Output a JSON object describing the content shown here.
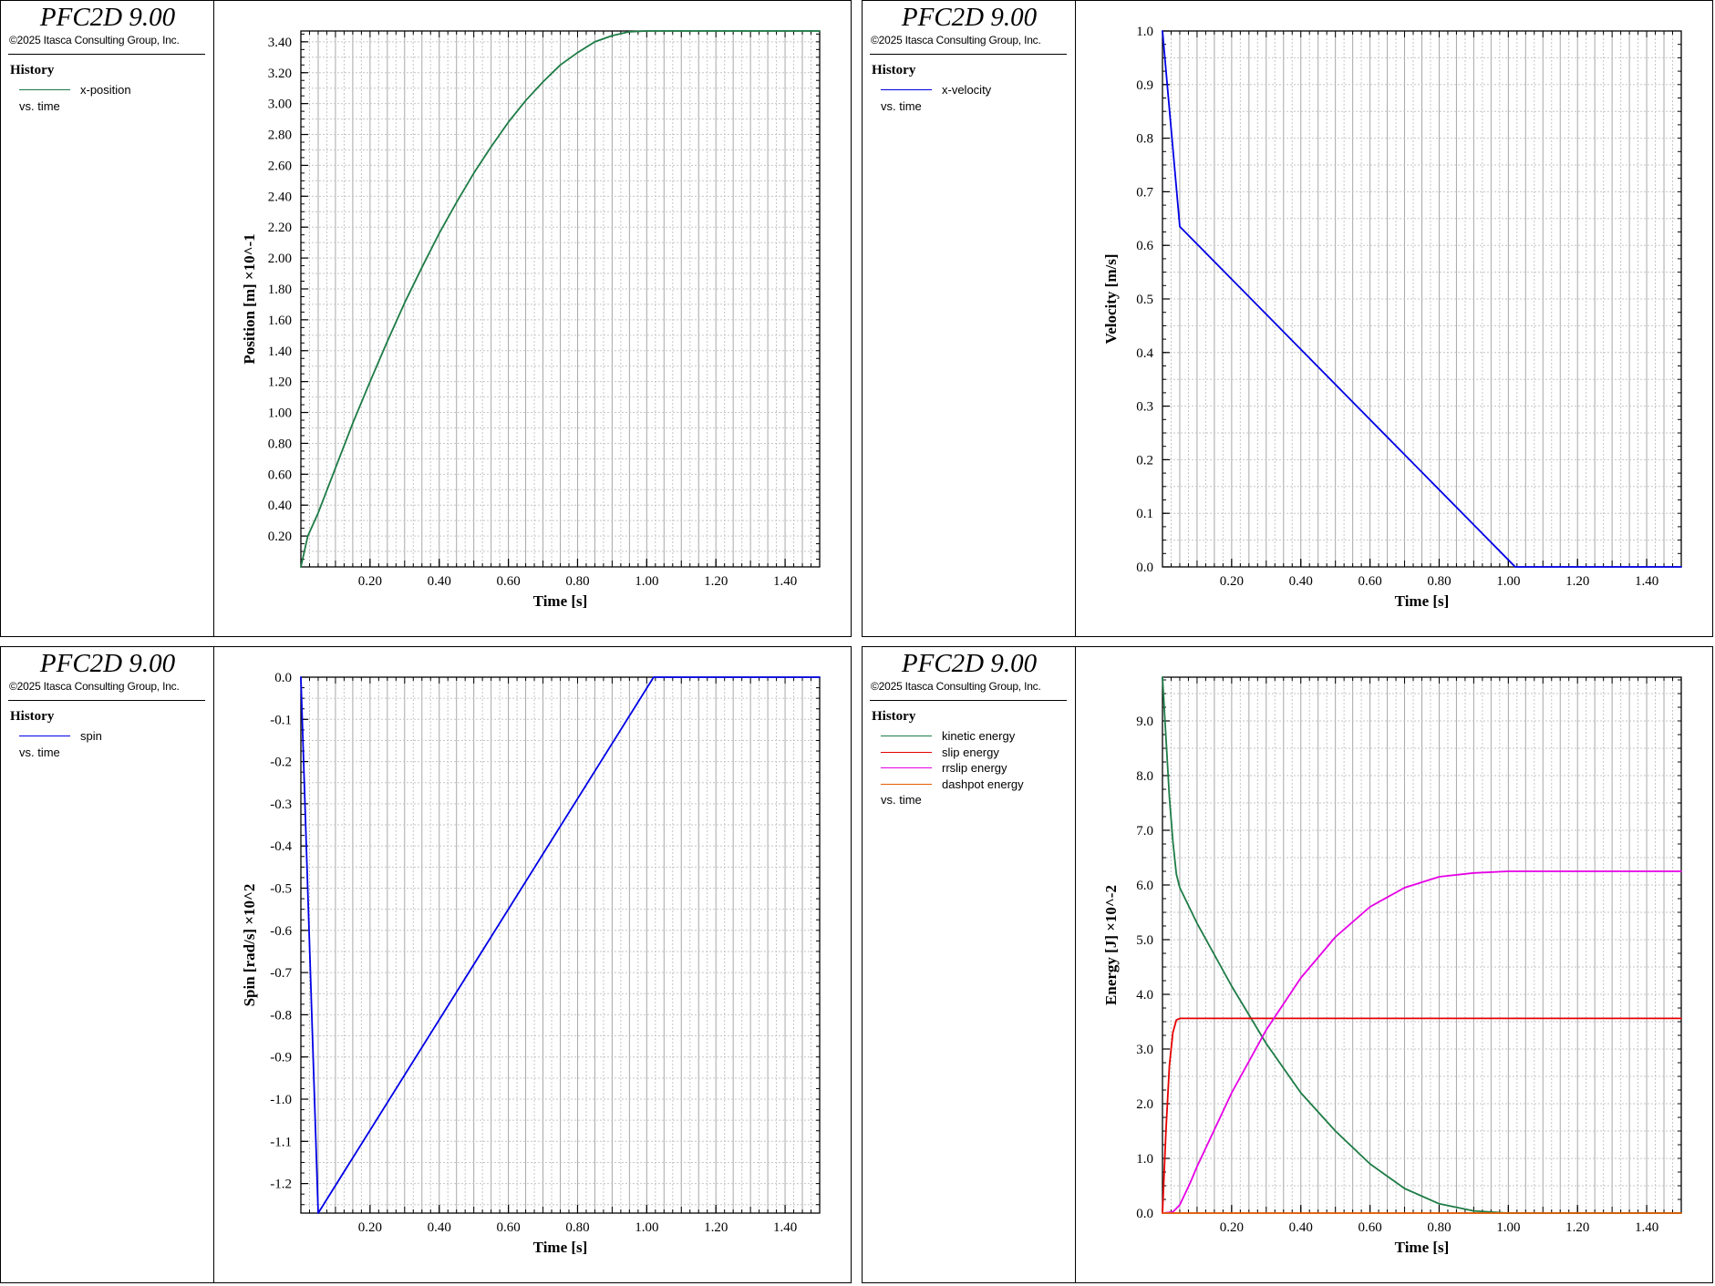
{
  "panels": [
    {
      "app_title": "PFC2D 9.00",
      "copyright": "©2025 Itasca Consulting Group, Inc.",
      "legend_heading": "History",
      "vs_label": "vs. time",
      "chart_data": {
        "type": "line",
        "xlabel": "Time [s]",
        "ylabel": "Position [m] ×10^-1",
        "xlim": [
          0,
          1.5
        ],
        "ylim": [
          0,
          3.47
        ],
        "xticks": [
          "0.20",
          "0.40",
          "0.60",
          "0.80",
          "1.00",
          "1.20",
          "1.40"
        ],
        "yticks": [
          "0.20",
          "0.40",
          "0.60",
          "0.80",
          "1.00",
          "1.20",
          "1.40",
          "1.60",
          "1.80",
          "2.00",
          "2.20",
          "2.40",
          "2.60",
          "2.80",
          "3.00",
          "3.20",
          "3.40"
        ],
        "grid": true,
        "series": [
          {
            "name": "x-position",
            "color": "#1e7c46",
            "x": [
              0,
              0.02,
              0.05,
              0.1,
              0.15,
              0.2,
              0.25,
              0.3,
              0.35,
              0.4,
              0.45,
              0.5,
              0.55,
              0.6,
              0.65,
              0.7,
              0.75,
              0.8,
              0.85,
              0.9,
              0.95,
              1.0,
              1.02,
              1.5
            ],
            "y": [
              0,
              0.2,
              0.35,
              0.64,
              0.93,
              1.2,
              1.46,
              1.71,
              1.94,
              2.16,
              2.36,
              2.55,
              2.72,
              2.88,
              3.02,
              3.14,
              3.25,
              3.33,
              3.4,
              3.44,
              3.465,
              3.47,
              3.47,
              3.47
            ]
          }
        ]
      }
    },
    {
      "app_title": "PFC2D 9.00",
      "copyright": "©2025 Itasca Consulting Group, Inc.",
      "legend_heading": "History",
      "vs_label": "vs. time",
      "chart_data": {
        "type": "line",
        "xlabel": "Time [s]",
        "ylabel": "Velocity [m/s]",
        "xlim": [
          0,
          1.5
        ],
        "ylim": [
          0,
          1.0
        ],
        "xticks": [
          "0.20",
          "0.40",
          "0.60",
          "0.80",
          "1.00",
          "1.20",
          "1.40"
        ],
        "yticks": [
          "0.0",
          "0.1",
          "0.2",
          "0.3",
          "0.4",
          "0.5",
          "0.6",
          "0.7",
          "0.8",
          "0.9",
          "1.0"
        ],
        "grid": true,
        "series": [
          {
            "name": "x-velocity",
            "color": "#0000e6",
            "x": [
              0,
              0.05,
              1.02,
              1.5
            ],
            "y": [
              1.0,
              0.635,
              0.0,
              0.0
            ]
          }
        ]
      }
    },
    {
      "app_title": "PFC2D 9.00",
      "copyright": "©2025 Itasca Consulting Group, Inc.",
      "legend_heading": "History",
      "vs_label": "vs. time",
      "chart_data": {
        "type": "line",
        "xlabel": "Time [s]",
        "ylabel": "Spin [rad/s] ×10^2",
        "xlim": [
          0,
          1.5
        ],
        "ylim": [
          -1.27,
          0.0
        ],
        "xticks": [
          "0.20",
          "0.40",
          "0.60",
          "0.80",
          "1.00",
          "1.20",
          "1.40"
        ],
        "yticks": [
          "0.0",
          "-0.1",
          "-0.2",
          "-0.3",
          "-0.4",
          "-0.5",
          "-0.6",
          "-0.7",
          "-0.8",
          "-0.9",
          "-1.0",
          "-1.1",
          "-1.2"
        ],
        "grid": true,
        "series": [
          {
            "name": "spin",
            "color": "#0000e6",
            "x": [
              0,
              0.05,
              1.02,
              1.5
            ],
            "y": [
              0,
              -1.27,
              0.0,
              0.0
            ]
          }
        ]
      }
    },
    {
      "app_title": "PFC2D 9.00",
      "copyright": "©2025 Itasca Consulting Group, Inc.",
      "legend_heading": "History",
      "vs_label": "vs. time",
      "chart_data": {
        "type": "line",
        "xlabel": "Time [s]",
        "ylabel": "Energy [J] ×10^-2",
        "xlim": [
          0,
          1.5
        ],
        "ylim": [
          0,
          9.8
        ],
        "xticks": [
          "0.20",
          "0.40",
          "0.60",
          "0.80",
          "1.00",
          "1.20",
          "1.40"
        ],
        "yticks": [
          "0.0",
          "1.0",
          "2.0",
          "3.0",
          "4.0",
          "5.0",
          "6.0",
          "7.0",
          "8.0",
          "9.0"
        ],
        "grid": true,
        "series": [
          {
            "name": "kinetic energy",
            "color": "#1e7c46",
            "x": [
              0,
              0.01,
              0.02,
              0.03,
              0.04,
              0.05,
              0.1,
              0.2,
              0.3,
              0.4,
              0.5,
              0.6,
              0.7,
              0.8,
              0.9,
              1.0,
              1.02,
              1.5
            ],
            "y": [
              9.8,
              8.7,
              7.6,
              6.8,
              6.2,
              5.95,
              5.3,
              4.15,
              3.1,
              2.2,
              1.5,
              0.9,
              0.45,
              0.17,
              0.04,
              0.0,
              0.0,
              0.0
            ]
          },
          {
            "name": "slip energy",
            "color": "#e60000",
            "x": [
              0,
              0.01,
              0.02,
              0.03,
              0.04,
              0.05,
              1.5
            ],
            "y": [
              0,
              1.5,
              2.7,
              3.3,
              3.53,
              3.56,
              3.56
            ]
          },
          {
            "name": "rrslip energy",
            "color": "#e600e6",
            "x": [
              0,
              0.03,
              0.05,
              0.08,
              0.1,
              0.2,
              0.3,
              0.4,
              0.5,
              0.6,
              0.7,
              0.8,
              0.9,
              1.0,
              1.02,
              1.5
            ],
            "y": [
              0,
              0.02,
              0.15,
              0.55,
              0.85,
              2.2,
              3.35,
              4.3,
              5.05,
              5.6,
              5.95,
              6.15,
              6.22,
              6.25,
              6.25,
              6.25
            ]
          },
          {
            "name": "dashpot energy",
            "color": "#e65c00",
            "x": [
              0,
              1.5
            ],
            "y": [
              0,
              0
            ]
          }
        ]
      }
    }
  ]
}
